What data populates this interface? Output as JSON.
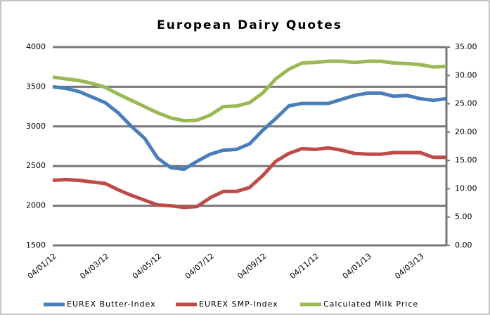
{
  "chart_data": {
    "type": "line",
    "title": "European Dairy Quotes",
    "categories": [
      "04/01/12",
      null,
      null,
      null,
      "04/03/12",
      null,
      null,
      null,
      "04/05/12",
      null,
      null,
      null,
      "04/07/12",
      null,
      null,
      null,
      "04/09/12",
      null,
      null,
      null,
      "04/11/12",
      null,
      null,
      null,
      "04/01/13",
      null,
      null,
      null,
      "04/03/13",
      null,
      null
    ],
    "series": [
      {
        "name": "EUREX Butter-Index",
        "color": "#4a7ebb",
        "values": [
          3500,
          3480,
          3440,
          3370,
          3300,
          3170,
          3000,
          2850,
          2600,
          2480,
          2460,
          2560,
          2650,
          2700,
          2710,
          2780,
          2950,
          3100,
          3260,
          3290,
          3290,
          3290,
          3340,
          3390,
          3420,
          3420,
          3380,
          3390,
          3350,
          3330,
          3350
        ]
      },
      {
        "name": "EUREX SMP-Index",
        "color": "#be4b48",
        "values": [
          2320,
          2330,
          2320,
          2300,
          2280,
          2200,
          2130,
          2070,
          2010,
          2000,
          1980,
          1990,
          2100,
          2180,
          2180,
          2230,
          2380,
          2560,
          2660,
          2720,
          2710,
          2730,
          2700,
          2660,
          2650,
          2650,
          2670,
          2670,
          2670,
          2610,
          2610
        ]
      },
      {
        "name": "Calculated Milk Price",
        "color": "#98b954",
        "axis": "y2",
        "values": [
          29.7,
          29.4,
          29.1,
          28.6,
          27.9,
          26.7,
          25.6,
          24.5,
          23.4,
          22.5,
          22.0,
          22.1,
          23.0,
          24.5,
          24.6,
          25.2,
          26.9,
          29.4,
          31.1,
          32.2,
          32.3,
          32.5,
          32.5,
          32.3,
          32.5,
          32.5,
          32.2,
          32.1,
          31.9,
          31.5,
          31.6
        ]
      }
    ],
    "ylim": [
      1500,
      4000
    ],
    "yticks": [
      1500,
      2000,
      2500,
      3000,
      3500,
      4000
    ],
    "y2lim": [
      0,
      35
    ],
    "y2ticks": [
      {
        "value": 0,
        "label": "0.00"
      },
      {
        "value": 5,
        "label": "5.00"
      },
      {
        "value": 10,
        "label": "10.00"
      },
      {
        "value": 15,
        "label": "15.00"
      },
      {
        "value": 20,
        "label": "20.00"
      },
      {
        "value": 25,
        "label": "25.00"
      },
      {
        "value": 30,
        "label": "30.00"
      },
      {
        "value": 35,
        "label": "35.00"
      }
    ],
    "grid": true,
    "legend": "bottom"
  }
}
